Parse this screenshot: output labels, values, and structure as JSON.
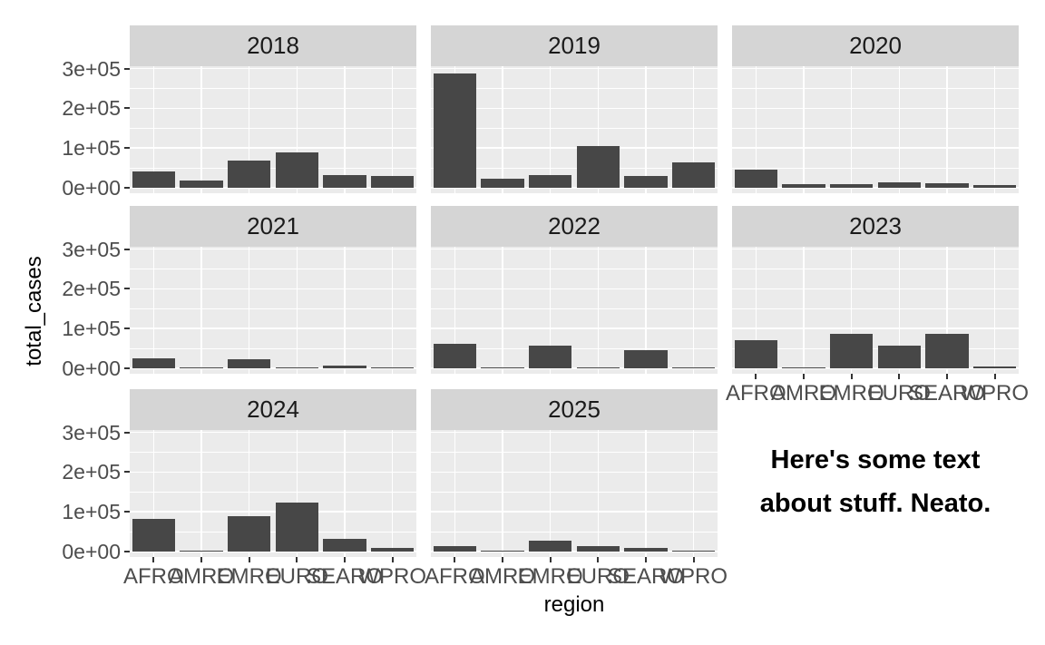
{
  "chart_data": {
    "type": "bar",
    "title": "",
    "xlabel": "region",
    "ylabel": "total_cases",
    "facet_variable": "year",
    "categories": [
      "AFRO",
      "AMRO",
      "EMRO",
      "EURO",
      "SEARO",
      "WPRO"
    ],
    "facets": [
      {
        "label": "2018",
        "values": [
          42000,
          19000,
          68000,
          89000,
          32000,
          29000
        ]
      },
      {
        "label": "2019",
        "values": [
          288000,
          22000,
          32000,
          104000,
          30000,
          63000
        ]
      },
      {
        "label": "2020",
        "values": [
          46000,
          10000,
          9000,
          13000,
          12000,
          7000
        ]
      },
      {
        "label": "2021",
        "values": [
          25000,
          1000,
          23000,
          500,
          7000,
          2000
        ]
      },
      {
        "label": "2022",
        "values": [
          62000,
          1000,
          56000,
          3000,
          46000,
          3000
        ]
      },
      {
        "label": "2023",
        "values": [
          70000,
          500,
          87000,
          58000,
          87000,
          4000
        ]
      },
      {
        "label": "2024",
        "values": [
          82000,
          1000,
          90000,
          123000,
          32000,
          9000
        ]
      },
      {
        "label": "2025",
        "values": [
          14000,
          3000,
          27000,
          14000,
          9000,
          3000
        ]
      }
    ],
    "y_tick_labels": [
      "0e+00",
      "1e+05",
      "2e+05",
      "3e+05"
    ],
    "y_tick_values": [
      0,
      100000,
      200000,
      300000
    ],
    "y_minor_values": [
      50000,
      150000,
      250000
    ],
    "ylim": [
      -14000,
      306000
    ],
    "grid": true,
    "legend": "none",
    "annotation_lines": [
      "Here's some text",
      "about stuff. Neato."
    ],
    "colors": {
      "bar": "#474747",
      "panel_background": "#EBEBEB",
      "strip_background": "#D5D5D5",
      "gridline": "#FFFFFF",
      "tick_label": "#4D4D4D",
      "strip_text": "#1A1A1A",
      "axis_title": "#000000",
      "annotation_text": "#000000",
      "tick_mark": "#333333",
      "figure_background": "#FFFFFF"
    }
  }
}
